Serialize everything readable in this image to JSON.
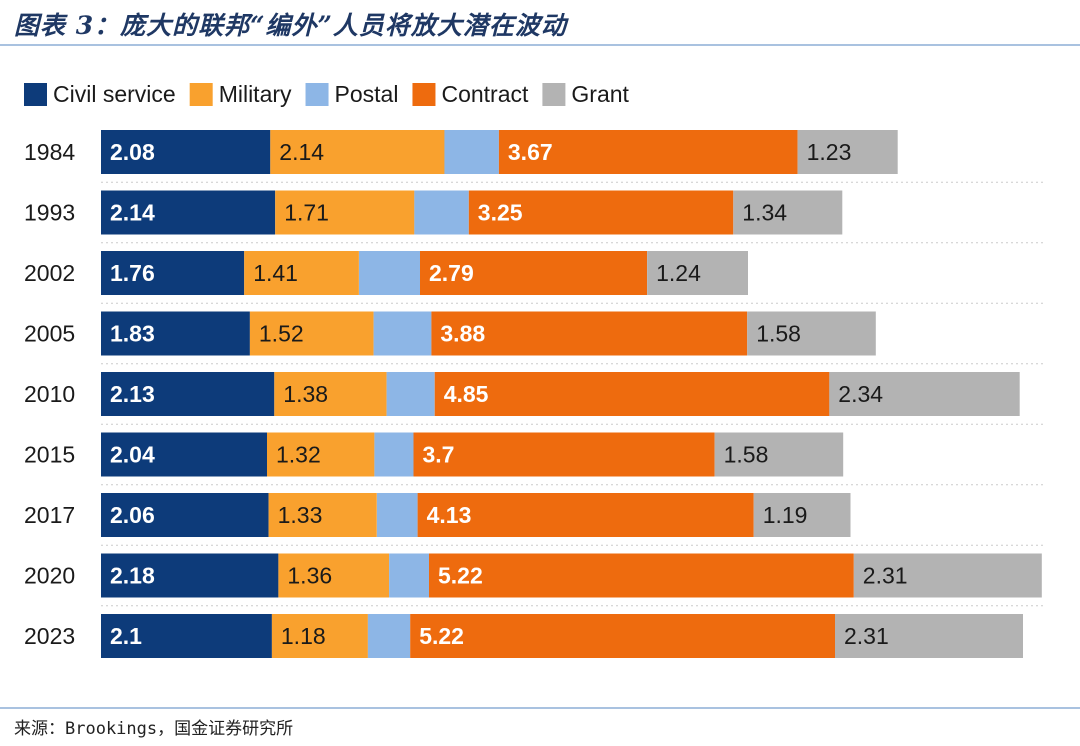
{
  "header": {
    "title": "图表 3：庞大的联邦“编外”人员将放大潜在波动"
  },
  "footer": {
    "source": "来源：Brookings，国金证券研究所"
  },
  "chart_data": {
    "type": "bar",
    "orientation": "horizontal",
    "stacked": true,
    "categories": [
      "1984",
      "1993",
      "2002",
      "2005",
      "2010",
      "2015",
      "2017",
      "2020",
      "2023"
    ],
    "series": [
      {
        "name": "Civil service",
        "color": "#0d3b7a",
        "label_color": "#ffffff",
        "show_labels": true,
        "values": [
          2.08,
          2.14,
          1.76,
          1.83,
          2.13,
          2.04,
          2.06,
          2.18,
          2.1
        ]
      },
      {
        "name": "Military",
        "color": "#f9a12e",
        "label_color": "#1a1a1a",
        "show_labels": true,
        "values": [
          2.14,
          1.71,
          1.41,
          1.52,
          1.38,
          1.32,
          1.33,
          1.36,
          1.18
        ]
      },
      {
        "name": "Postal",
        "color": "#8db6e6",
        "label_color": "#1a1a1a",
        "show_labels": false,
        "values": [
          0.67,
          0.67,
          0.75,
          0.71,
          0.59,
          0.48,
          0.5,
          0.49,
          0.52
        ]
      },
      {
        "name": "Contract",
        "color": "#ee6b0e",
        "label_color": "#ffffff",
        "show_labels": true,
        "values": [
          3.67,
          3.25,
          2.79,
          3.88,
          4.85,
          3.7,
          4.13,
          5.22,
          5.22
        ]
      },
      {
        "name": "Grant",
        "color": "#b3b3b3",
        "label_color": "#1a1a1a",
        "show_labels": true,
        "values": [
          1.23,
          1.34,
          1.24,
          1.58,
          2.34,
          1.58,
          1.19,
          2.31,
          2.31
        ]
      }
    ],
    "legend_position": "top-left",
    "grid": "horizontal dotted separators",
    "xlim": [
      0,
      11.6
    ]
  }
}
